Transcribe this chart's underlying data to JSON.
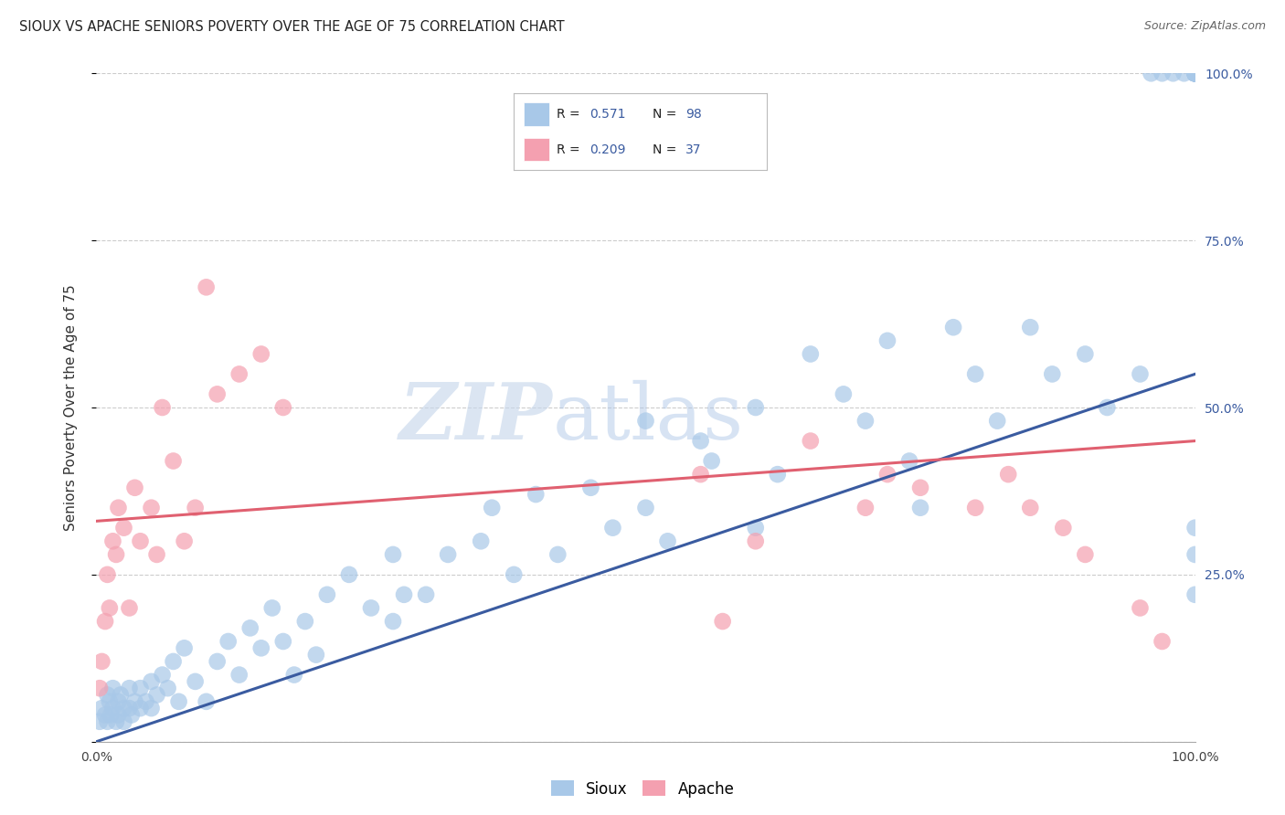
{
  "title": "SIOUX VS APACHE SENIORS POVERTY OVER THE AGE OF 75 CORRELATION CHART",
  "source": "Source: ZipAtlas.com",
  "ylabel": "Seniors Poverty Over the Age of 75",
  "sioux_label": "Sioux",
  "apache_label": "Apache",
  "sioux_R": "0.571",
  "sioux_N": "98",
  "apache_R": "0.209",
  "apache_N": "37",
  "sioux_color": "#a8c8e8",
  "apache_color": "#f4a0b0",
  "sioux_line_color": "#3a5ba0",
  "apache_line_color": "#e06070",
  "background_color": "#ffffff",
  "grid_color": "#cccccc",
  "watermark_zip": "ZIP",
  "watermark_atlas": "atlas",
  "legend_R_N_color": "#3a5ba0",
  "xlim": [
    0,
    100
  ],
  "ylim": [
    0,
    100
  ],
  "yticks": [
    0,
    25,
    50,
    75,
    100
  ],
  "sioux_line_start_y": 0.0,
  "sioux_line_end_y": 55.0,
  "apache_line_start_y": 33.0,
  "apache_line_end_y": 45.0,
  "sioux_x": [
    0.3,
    0.5,
    0.8,
    1.0,
    1.0,
    1.2,
    1.3,
    1.5,
    1.5,
    1.8,
    2.0,
    2.0,
    2.2,
    2.5,
    2.5,
    3.0,
    3.0,
    3.2,
    3.5,
    4.0,
    4.0,
    4.5,
    5.0,
    5.0,
    5.5,
    6.0,
    6.5,
    7.0,
    7.5,
    8.0,
    9.0,
    10.0,
    11.0,
    12.0,
    13.0,
    14.0,
    15.0,
    16.0,
    17.0,
    18.0,
    19.0,
    20.0,
    21.0,
    23.0,
    25.0,
    27.0,
    27.0,
    28.0,
    30.0,
    32.0,
    35.0,
    36.0,
    38.0,
    40.0,
    42.0,
    45.0,
    47.0,
    50.0,
    50.0,
    52.0,
    55.0,
    56.0,
    60.0,
    60.0,
    62.0,
    65.0,
    68.0,
    70.0,
    72.0,
    74.0,
    75.0,
    78.0,
    80.0,
    82.0,
    85.0,
    87.0,
    90.0,
    92.0,
    95.0,
    96.0,
    97.0,
    98.0,
    99.0,
    100.0,
    100.0,
    100.0,
    100.0,
    100.0,
    100.0,
    100.0,
    100.0,
    100.0,
    100.0,
    100.0,
    100.0,
    100.0,
    100.0,
    100.0
  ],
  "sioux_y": [
    3.0,
    5.0,
    4.0,
    7.0,
    3.0,
    6.0,
    4.0,
    5.0,
    8.0,
    3.0,
    6.0,
    4.0,
    7.0,
    5.0,
    3.0,
    8.0,
    5.0,
    4.0,
    6.0,
    8.0,
    5.0,
    6.0,
    9.0,
    5.0,
    7.0,
    10.0,
    8.0,
    12.0,
    6.0,
    14.0,
    9.0,
    6.0,
    12.0,
    15.0,
    10.0,
    17.0,
    14.0,
    20.0,
    15.0,
    10.0,
    18.0,
    13.0,
    22.0,
    25.0,
    20.0,
    18.0,
    28.0,
    22.0,
    22.0,
    28.0,
    30.0,
    35.0,
    25.0,
    37.0,
    28.0,
    38.0,
    32.0,
    35.0,
    48.0,
    30.0,
    45.0,
    42.0,
    50.0,
    32.0,
    40.0,
    58.0,
    52.0,
    48.0,
    60.0,
    42.0,
    35.0,
    62.0,
    55.0,
    48.0,
    62.0,
    55.0,
    58.0,
    50.0,
    55.0,
    100.0,
    100.0,
    100.0,
    100.0,
    100.0,
    100.0,
    100.0,
    100.0,
    100.0,
    100.0,
    100.0,
    100.0,
    100.0,
    100.0,
    100.0,
    100.0,
    28.0,
    32.0,
    22.0
  ],
  "apache_x": [
    0.3,
    0.5,
    0.8,
    1.0,
    1.2,
    1.5,
    1.8,
    2.0,
    2.5,
    3.0,
    3.5,
    4.0,
    5.0,
    5.5,
    6.0,
    7.0,
    8.0,
    9.0,
    10.0,
    11.0,
    13.0,
    15.0,
    17.0,
    55.0,
    57.0,
    60.0,
    65.0,
    70.0,
    72.0,
    75.0,
    80.0,
    83.0,
    85.0,
    88.0,
    90.0,
    95.0,
    97.0
  ],
  "apache_y": [
    8.0,
    12.0,
    18.0,
    25.0,
    20.0,
    30.0,
    28.0,
    35.0,
    32.0,
    20.0,
    38.0,
    30.0,
    35.0,
    28.0,
    50.0,
    42.0,
    30.0,
    35.0,
    68.0,
    52.0,
    55.0,
    58.0,
    50.0,
    40.0,
    18.0,
    30.0,
    45.0,
    35.0,
    40.0,
    38.0,
    35.0,
    40.0,
    35.0,
    32.0,
    28.0,
    20.0,
    15.0
  ]
}
